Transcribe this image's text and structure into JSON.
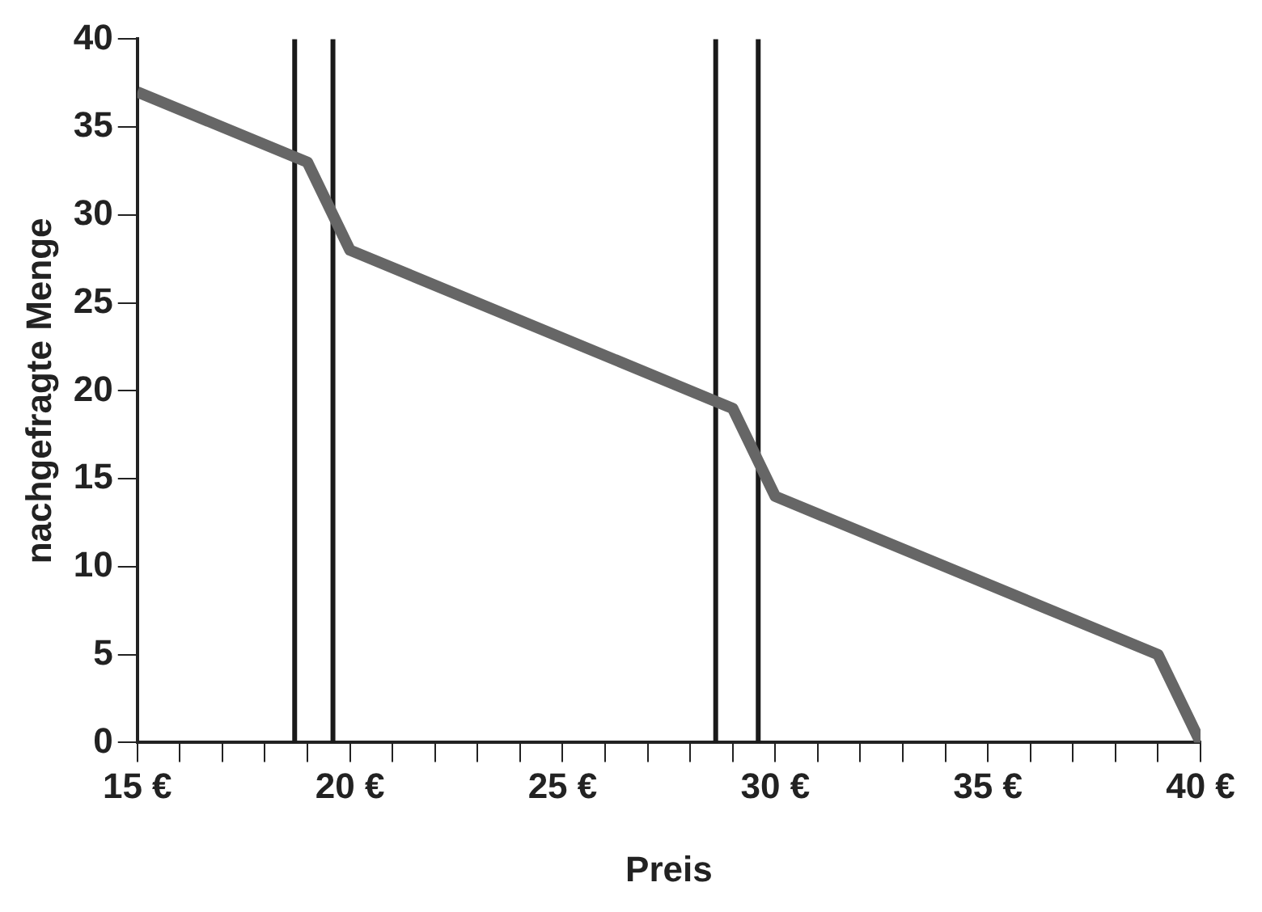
{
  "chart_data": {
    "type": "line",
    "xlabel": "Preis",
    "ylabel": "nachgefragte Menge",
    "x": [
      15,
      19,
      20,
      29,
      30,
      39,
      40
    ],
    "series": [
      {
        "color": "#666666",
        "values": [
          37,
          33,
          28,
          19,
          14,
          5,
          0
        ]
      }
    ],
    "xlim": [
      15,
      40
    ],
    "ylim": [
      0,
      40
    ],
    "xticks": [
      {
        "value": 15,
        "label": "15 €"
      },
      {
        "value": 16,
        "label": null
      },
      {
        "value": 17,
        "label": null
      },
      {
        "value": 18,
        "label": null
      },
      {
        "value": 19,
        "label": null
      },
      {
        "value": 20,
        "label": "20 €"
      },
      {
        "value": 21,
        "label": null
      },
      {
        "value": 22,
        "label": null
      },
      {
        "value": 23,
        "label": null
      },
      {
        "value": 24,
        "label": null
      },
      {
        "value": 25,
        "label": "25 €"
      },
      {
        "value": 26,
        "label": null
      },
      {
        "value": 27,
        "label": null
      },
      {
        "value": 28,
        "label": null
      },
      {
        "value": 29,
        "label": null
      },
      {
        "value": 30,
        "label": "30 €"
      },
      {
        "value": 31,
        "label": null
      },
      {
        "value": 32,
        "label": null
      },
      {
        "value": 33,
        "label": null
      },
      {
        "value": 34,
        "label": null
      },
      {
        "value": 35,
        "label": "35 €"
      },
      {
        "value": 36,
        "label": null
      },
      {
        "value": 37,
        "label": null
      },
      {
        "value": 38,
        "label": null
      },
      {
        "value": 39,
        "label": null
      },
      {
        "value": 40,
        "label": "40 €"
      }
    ],
    "yticks": [
      0,
      5,
      10,
      15,
      20,
      25,
      30,
      35,
      40
    ],
    "ref_lines": [
      {
        "axis": "x",
        "value": 18.7,
        "color": "#1a1a1a"
      },
      {
        "axis": "x",
        "value": 19.6,
        "color": "#1a1a1a"
      },
      {
        "axis": "x",
        "value": 28.6,
        "color": "#1a1a1a"
      },
      {
        "axis": "x",
        "value": 29.6,
        "color": "#1a1a1a"
      }
    ],
    "grid": false,
    "legend": false,
    "marker": "none",
    "line_style": "solid"
  }
}
